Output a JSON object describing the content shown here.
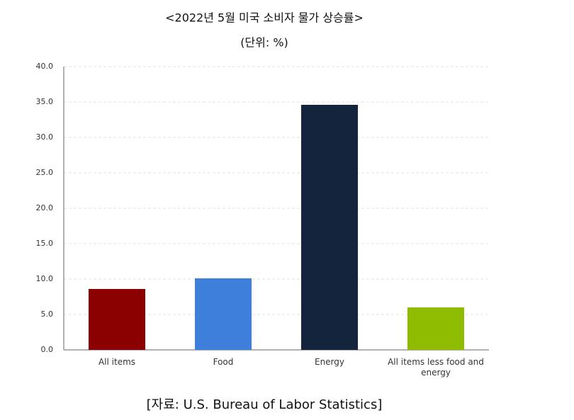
{
  "chart_data": {
    "type": "bar",
    "title": "<2022년 5월 미국 소비자 물가 상승률>",
    "subtitle": "(단위: %)",
    "source": "[자료: U.S. Bureau of Labor Statistics]",
    "categories": [
      "All items",
      "Food",
      "Energy",
      "All items less food and energy"
    ],
    "values": [
      8.6,
      10.1,
      34.6,
      6.0
    ],
    "colors": [
      "#8b0000",
      "#3e7fdc",
      "#14243c",
      "#8fbc00"
    ],
    "ylim": [
      0,
      40
    ],
    "yticks": [
      {
        "value": 0,
        "label": "0.0"
      },
      {
        "value": 5,
        "label": "5.0"
      },
      {
        "value": 10,
        "label": "10.0"
      },
      {
        "value": 15,
        "label": "15.0"
      },
      {
        "value": 20,
        "label": "20.0"
      },
      {
        "value": 25,
        "label": "25.0"
      },
      {
        "value": 30,
        "label": "30.0"
      },
      {
        "value": 35,
        "label": "35.0"
      },
      {
        "value": 40,
        "label": "40.0"
      }
    ],
    "grid": true
  }
}
